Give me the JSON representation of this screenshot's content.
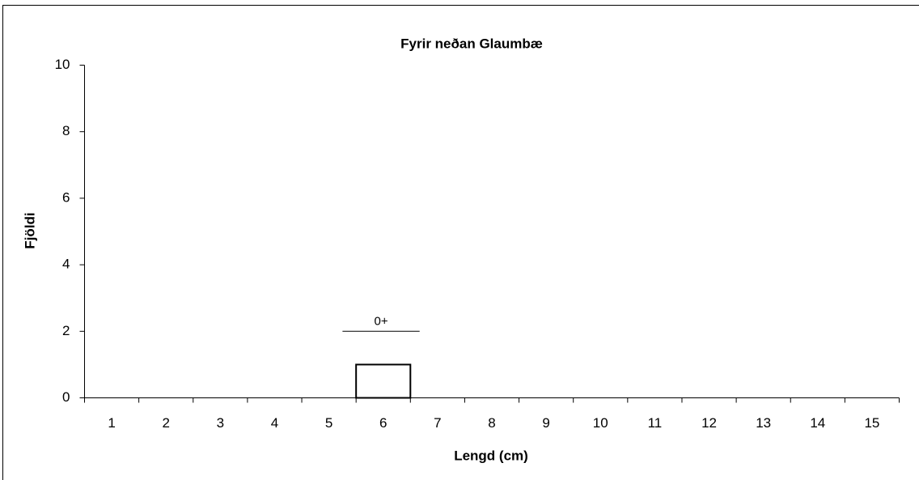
{
  "chart_data": {
    "type": "bar",
    "title": "Fyrir neðan Glaumbæ",
    "x_label": "Lengd (cm)",
    "y_label": "Fjöldi",
    "categories": [
      "1",
      "2",
      "3",
      "4",
      "5",
      "6",
      "7",
      "8",
      "9",
      "10",
      "11",
      "12",
      "13",
      "14",
      "15"
    ],
    "values": [
      0,
      0,
      0,
      0,
      0,
      1,
      0,
      0,
      0,
      0,
      0,
      0,
      0,
      0,
      0
    ],
    "color": "#ffffff",
    "edge_color": "#000000",
    "ylim": [
      0,
      10
    ],
    "yticks": [
      0,
      2,
      4,
      6,
      8,
      10
    ],
    "grid": false,
    "annotations": [
      {
        "text": "0+",
        "y": 2,
        "x_start": 5.25,
        "x_end": 6.67
      }
    ]
  }
}
